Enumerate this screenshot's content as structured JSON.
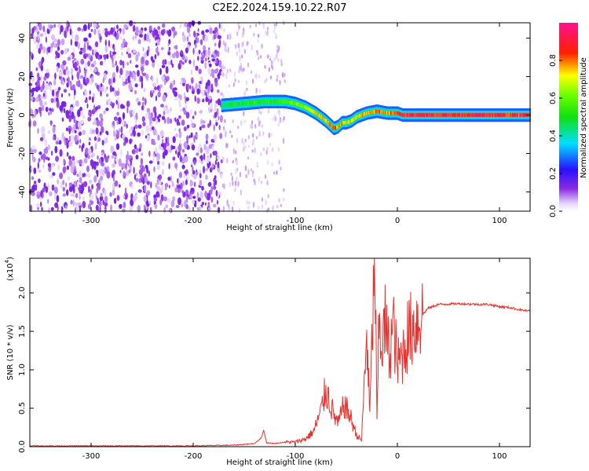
{
  "title": "C2E2.2024.159.10.22.R07",
  "chart_data": [
    {
      "type": "heatmap",
      "xlabel": "Height of straight line (km)",
      "ylabel": "Frequency (Hz)",
      "xlim": [
        -360,
        130
      ],
      "ylim": [
        -50,
        48
      ],
      "x_ticks": [
        "-300",
        "-200",
        "-100",
        "0",
        "100"
      ],
      "x_tick_values": [
        -300,
        -200,
        -100,
        0,
        100
      ],
      "y_ticks": [
        "-40",
        "-20",
        "0",
        "20",
        "40"
      ],
      "y_tick_values": [
        -40,
        -20,
        0,
        20,
        40
      ],
      "colorbar": {
        "label": "Normalized spectral amplitude",
        "ticks": [
          "0.0",
          "0.2",
          "0.4",
          "0.6",
          "0.8"
        ],
        "tick_values": [
          0,
          0.2,
          0.4,
          0.6,
          0.8
        ],
        "range": [
          0,
          1
        ],
        "colormap": "rainbow (purple-blue-cyan-green-yellow-red-magenta)"
      },
      "noise_region_x": [
        -360,
        -172
      ],
      "sparse_noise_x": [
        -172,
        -110
      ],
      "signal_track": {
        "x": [
          -172,
          -150,
          -130,
          -110,
          -100,
          -90,
          -80,
          -70,
          -62,
          -58,
          -54,
          -50,
          -45,
          -40,
          -30,
          -20,
          -10,
          0,
          5,
          10,
          50,
          100,
          130
        ],
        "y": [
          5,
          6,
          7,
          7,
          6,
          4,
          1,
          -3,
          -7,
          -6,
          -4,
          -4,
          -3,
          -1,
          1,
          2,
          1,
          1,
          0,
          0,
          0,
          0,
          0
        ],
        "peak_amplitude": [
          0.45,
          0.5,
          0.5,
          0.55,
          0.6,
          0.65,
          0.7,
          0.75,
          0.8,
          0.7,
          0.75,
          0.7,
          0.7,
          0.7,
          0.75,
          0.8,
          0.8,
          0.85,
          0.9,
          0.9,
          0.9,
          0.9,
          0.9
        ]
      },
      "grid": false
    },
    {
      "type": "line",
      "xlabel": "Height of straight line (km)",
      "ylabel": "SNR (10 * v/v)",
      "y_multiplier_label": "(x10",
      "y_multiplier_exp": "4",
      "y_multiplier_close": ")",
      "xlim": [
        -360,
        130
      ],
      "ylim": [
        0,
        2.45
      ],
      "x_ticks": [
        "-300",
        "-200",
        "-100",
        "0",
        "100"
      ],
      "x_tick_values": [
        -300,
        -200,
        -100,
        0,
        100
      ],
      "y_ticks": [
        "0.0",
        "0.5",
        "1.0",
        "1.5",
        "2.0"
      ],
      "y_tick_values": [
        0,
        0.5,
        1.0,
        1.5,
        2.0
      ],
      "color": "#e8322e",
      "x": [
        -360,
        -300,
        -250,
        -200,
        -160,
        -140,
        -133,
        -131,
        -128,
        -120,
        -110,
        -100,
        -90,
        -82,
        -75,
        -70,
        -62,
        -58,
        -52,
        -45,
        -40,
        -35,
        -30,
        -27,
        -24,
        -22,
        -20,
        -18,
        -15,
        -12,
        -8,
        -4,
        0,
        5,
        10,
        15,
        20,
        25,
        30,
        40,
        60,
        80,
        90,
        100,
        110,
        120,
        130
      ],
      "values": [
        0.01,
        0.01,
        0.01,
        0.01,
        0.02,
        0.04,
        0.12,
        0.22,
        0.05,
        0.04,
        0.06,
        0.06,
        0.1,
        0.2,
        0.45,
        0.75,
        0.4,
        0.3,
        0.55,
        0.35,
        0.15,
        0.08,
        1.5,
        0.4,
        1.7,
        2.45,
        0.3,
        1.6,
        1.3,
        1.6,
        1.2,
        1.6,
        1.05,
        1.2,
        1.45,
        1.55,
        1.65,
        1.72,
        1.8,
        1.85,
        1.86,
        1.85,
        1.85,
        1.82,
        1.81,
        1.78,
        1.76
      ],
      "grid": false
    }
  ]
}
